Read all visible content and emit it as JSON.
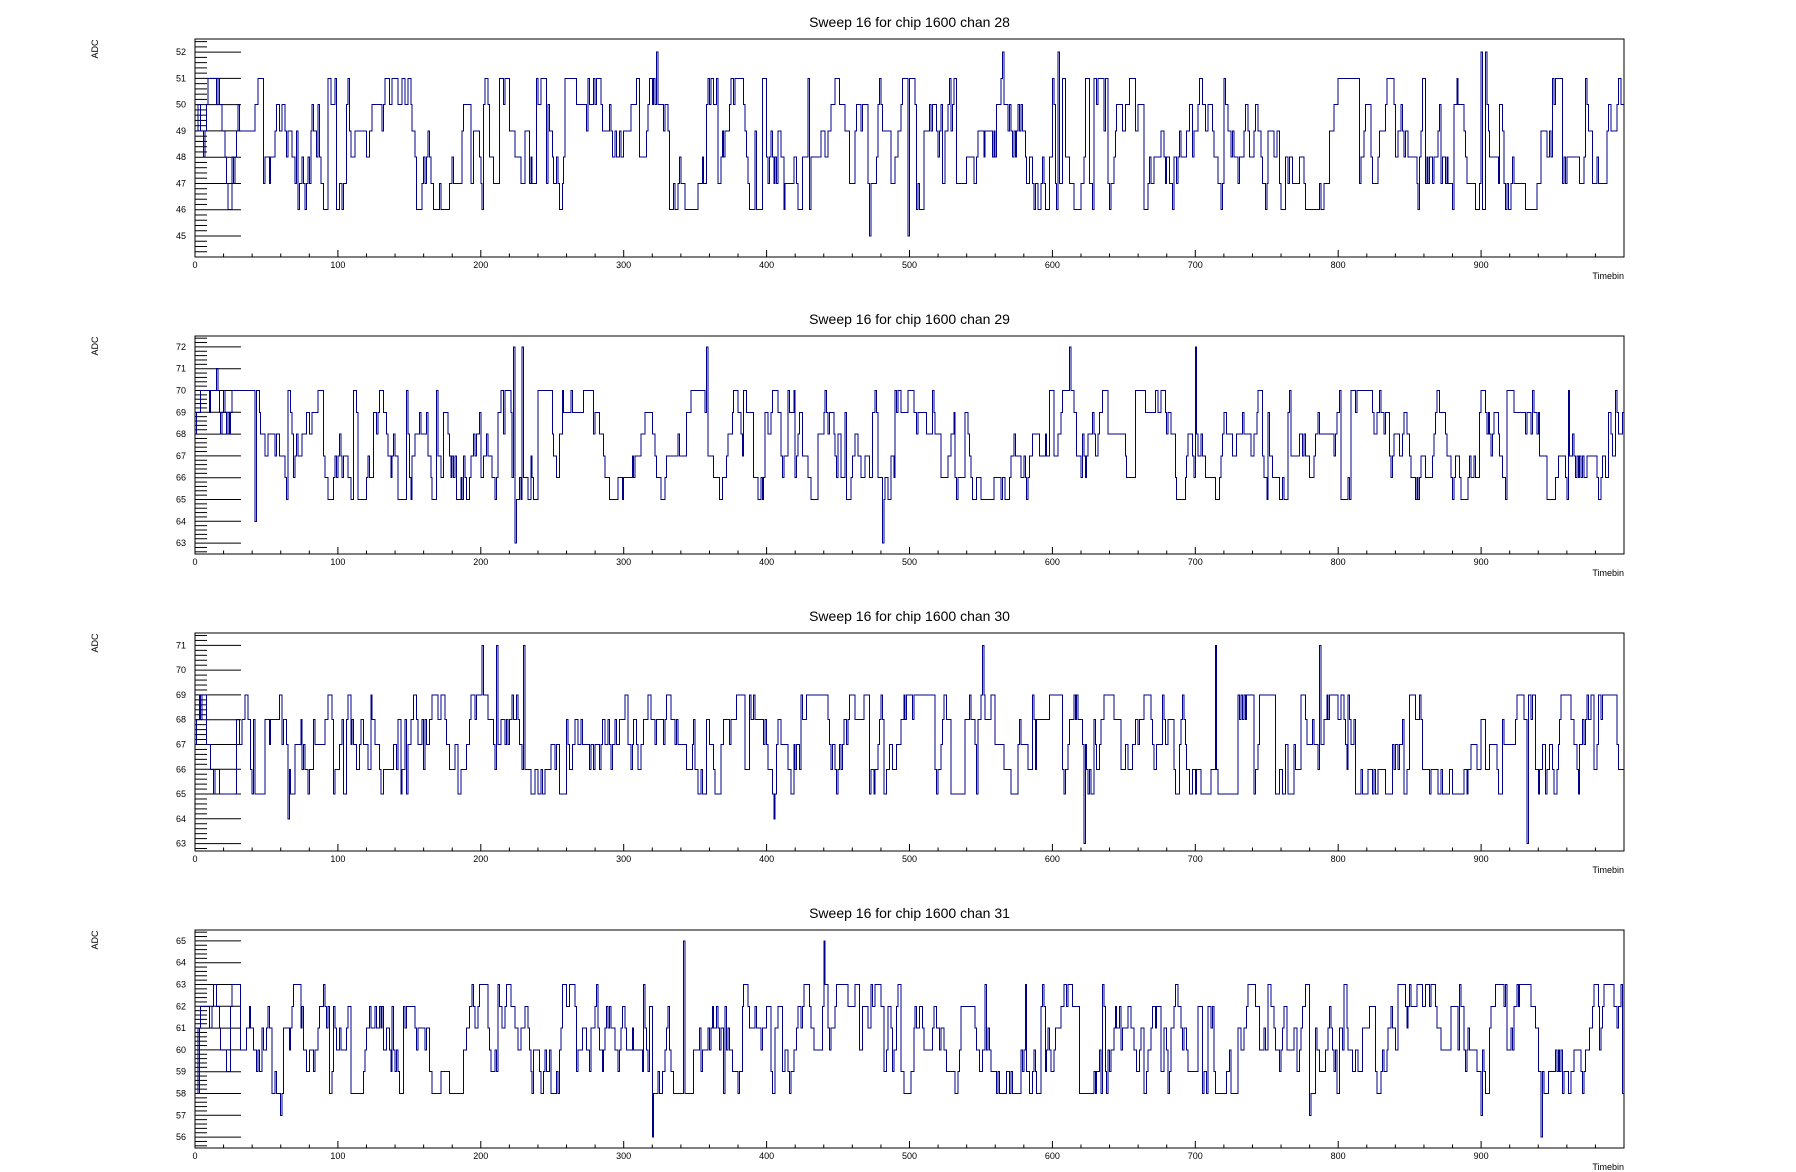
{
  "chart_data": [
    {
      "type": "line",
      "title": "Sweep 16 for chip 1600 chan 28",
      "xlabel": "Timebin",
      "ylabel": "ADC",
      "xlim": [
        0,
        1000
      ],
      "ylim": [
        44.2,
        52.5
      ],
      "x_ticks": [
        0,
        100,
        200,
        300,
        400,
        500,
        600,
        700,
        800,
        900
      ],
      "y_ticks": [
        45,
        46,
        47,
        48,
        49,
        50,
        51,
        52
      ],
      "series": [
        {
          "baseline": 48.5,
          "range": [
            46,
            51
          ],
          "extremes": [
            [
              323,
              52
            ],
            [
              565,
              52
            ],
            [
              604,
              52
            ],
            [
              900,
              52
            ],
            [
              903,
              52
            ],
            [
              472,
              45
            ],
            [
              499,
              45
            ]
          ]
        }
      ],
      "color": "#00008b",
      "grid": false
    },
    {
      "type": "line",
      "title": "Sweep 16 for chip 1600 chan 29",
      "xlabel": "Timebin",
      "ylabel": "ADC",
      "xlim": [
        0,
        1000
      ],
      "ylim": [
        62.5,
        72.5
      ],
      "x_ticks": [
        0,
        100,
        200,
        300,
        400,
        500,
        600,
        700,
        800,
        900
      ],
      "y_ticks": [
        63,
        64,
        65,
        66,
        67,
        68,
        69,
        70,
        71,
        72
      ],
      "series": [
        {
          "baseline": 67.5,
          "range": [
            65,
            70
          ],
          "extremes": [
            [
              223,
              72
            ],
            [
              229,
              72
            ],
            [
              358,
              72
            ],
            [
              612,
              72
            ],
            [
              700,
              72
            ],
            [
              224,
              63
            ],
            [
              481,
              63
            ],
            [
              15,
              71
            ],
            [
              42,
              64
            ]
          ]
        }
      ],
      "color": "#00008b",
      "grid": false
    },
    {
      "type": "line",
      "title": "Sweep 16 for chip 1600 chan 30",
      "xlabel": "Timebin",
      "ylabel": "ADC",
      "xlim": [
        0,
        1000
      ],
      "ylim": [
        62.7,
        71.5
      ],
      "x_ticks": [
        0,
        100,
        200,
        300,
        400,
        500,
        600,
        700,
        800,
        900
      ],
      "y_ticks": [
        63,
        64,
        65,
        66,
        67,
        68,
        69,
        70,
        71
      ],
      "series": [
        {
          "baseline": 67,
          "range": [
            65,
            69
          ],
          "extremes": [
            [
              201,
              71
            ],
            [
              211,
              71
            ],
            [
              230,
              71
            ],
            [
              551,
              71
            ],
            [
              714,
              71
            ],
            [
              787,
              71
            ],
            [
              622,
              63
            ],
            [
              932,
              63
            ],
            [
              65,
              64
            ],
            [
              405,
              64
            ]
          ]
        }
      ],
      "color": "#00008b",
      "grid": false
    },
    {
      "type": "line",
      "title": "Sweep 16 for chip 1600 chan 31",
      "xlabel": "Timebin",
      "ylabel": "ADC",
      "xlim": [
        0,
        1000
      ],
      "ylim": [
        55.5,
        65.5
      ],
      "x_ticks": [
        0,
        100,
        200,
        300,
        400,
        500,
        600,
        700,
        800,
        900
      ],
      "y_ticks": [
        56,
        57,
        58,
        59,
        60,
        61,
        62,
        63,
        64,
        65
      ],
      "series": [
        {
          "baseline": 60.5,
          "range": [
            58,
            63
          ],
          "extremes": [
            [
              342,
              65
            ],
            [
              440,
              65
            ],
            [
              320,
              56
            ],
            [
              942,
              56
            ],
            [
              60,
              57
            ],
            [
              780,
              57
            ],
            [
              900,
              57
            ]
          ]
        }
      ],
      "color": "#00008b",
      "grid": false
    }
  ]
}
